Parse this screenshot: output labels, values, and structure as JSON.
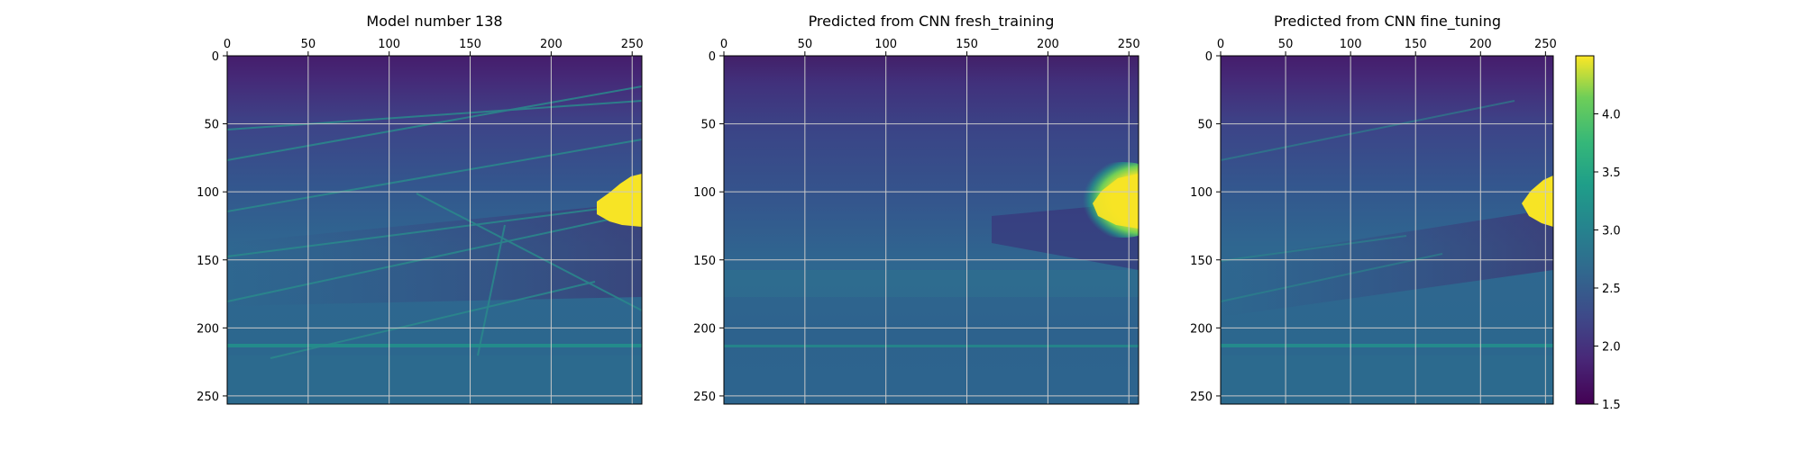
{
  "chart_data": {
    "type": "heatmap",
    "grid": true,
    "panels": [
      {
        "title": "Model number 138",
        "xticks": [
          "0",
          "50",
          "100",
          "150",
          "200",
          "250"
        ],
        "yticks": [
          "0",
          "50",
          "100",
          "150",
          "200",
          "250"
        ],
        "xlim": [
          0,
          256
        ],
        "ylim": [
          256,
          0
        ],
        "x_axis_position": "top",
        "description_of_field": "layered velocity model: dark top band, medium layered background, thin dipping bright reflectors, yellow high-value body near x 230-256, y 88-125"
      },
      {
        "title": "Predicted from CNN fresh_training",
        "xticks": [
          "0",
          "50",
          "100",
          "150",
          "200",
          "250"
        ],
        "yticks": [
          "0",
          "50",
          "100",
          "150",
          "200",
          "250"
        ],
        "xlim": [
          0,
          256
        ],
        "ylim": [
          256,
          0
        ],
        "x_axis_position": "top"
      },
      {
        "title": "Predicted from CNN fine_tuning",
        "xticks": [
          "0",
          "50",
          "100",
          "150",
          "200",
          "250"
        ],
        "yticks": [
          "0",
          "50",
          "100",
          "150",
          "200",
          "250"
        ],
        "xlim": [
          0,
          256
        ],
        "ylim": [
          256,
          0
        ],
        "x_axis_position": "top"
      }
    ],
    "colorbar": {
      "colormap": "viridis",
      "range": [
        1.5,
        4.5
      ],
      "ticks": [
        "1.5",
        "2.0",
        "2.5",
        "3.0",
        "3.5",
        "4.0"
      ]
    },
    "colors": {
      "dark": "#46206b",
      "mid": "#2d6a8a",
      "teal": "#22958b",
      "yellow": "#f7e425",
      "grid": "#c8c8c8"
    }
  }
}
